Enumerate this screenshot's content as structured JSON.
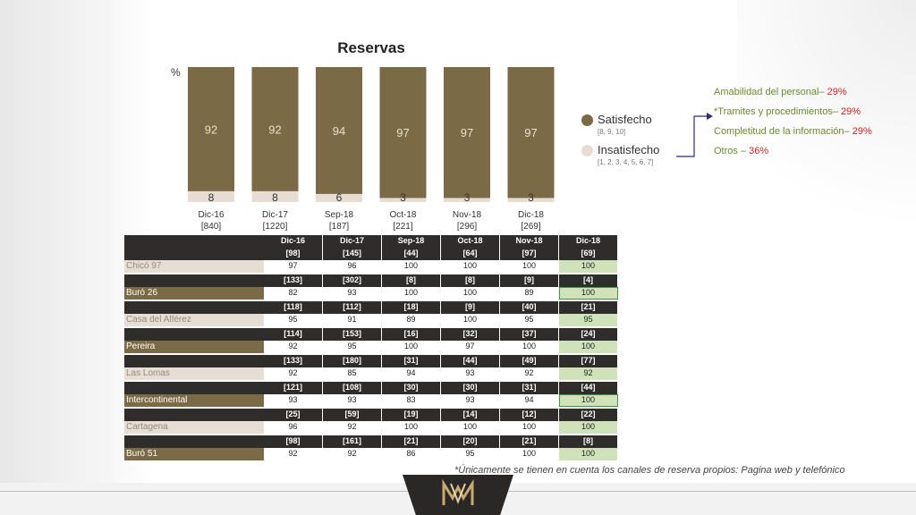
{
  "title": "Reservas",
  "y_unit": "%",
  "colors": {
    "satisfied": "#7a6a45",
    "unsatisfied": "#e7ddd4",
    "highlight": "#cfe2b9",
    "reason_value": "#d21f1f",
    "reason_text": "#6b8a2e"
  },
  "chart_data": {
    "type": "bar",
    "categories": [
      "Dic-16",
      "Dic-17",
      "Sep-18",
      "Oct-18",
      "Nov-18",
      "Dic-18"
    ],
    "bases": [
      "[840]",
      "[1220]",
      "[187]",
      "[221]",
      "[296]",
      "[269]"
    ],
    "series": [
      {
        "name": "Satisfecho",
        "values": [
          92,
          92,
          94,
          97,
          97,
          97
        ]
      },
      {
        "name": "Insatisfecho",
        "values": [
          8,
          8,
          6,
          3,
          3,
          3
        ]
      }
    ],
    "ylim": [
      0,
      100
    ]
  },
  "legend": {
    "satisfied_label": "Satisfecho",
    "satisfied_sub": "[8, 9, 10]",
    "unsatisfied_label": "Insatisfecho",
    "unsatisfied_sub": "[1, 2, 3, 4, 5, 6, 7]"
  },
  "reasons": [
    {
      "label": "Amabilidad del personal–",
      "value": "29%"
    },
    {
      "label": "*Tramites y procedimientos–",
      "value": "29%"
    },
    {
      "label": "Completitud de la información–",
      "value": "29%"
    },
    {
      "label": "Otros –",
      "value": "36%"
    }
  ],
  "table": {
    "columns": [
      "Dic-16",
      "Dic-17",
      "Sep-18",
      "Oct-18",
      "Nov-18",
      "Dic-18"
    ],
    "header_counts": [
      "[98]",
      "[145]",
      "[44]",
      "[64]",
      "[97]",
      "[69]"
    ],
    "rows": [
      {
        "name": "Chicó 97",
        "values": [
          "97",
          "96",
          "100",
          "100",
          "100",
          "100"
        ]
      },
      {
        "name": "Buró 26",
        "counts": [
          "[133]",
          "[302]",
          "[8]",
          "[8]",
          "[9]",
          "[4]"
        ],
        "values": [
          "82",
          "93",
          "100",
          "100",
          "89",
          "100"
        ]
      },
      {
        "name": "Casa del Alférez",
        "counts": [
          "[118]",
          "[112]",
          "[18]",
          "[9]",
          "[40]",
          "[21]"
        ],
        "values": [
          "95",
          "91",
          "89",
          "100",
          "95",
          "95"
        ]
      },
      {
        "name": "Pereira",
        "counts": [
          "[114]",
          "[153]",
          "[16]",
          "[32]",
          "[37]",
          "[24]"
        ],
        "values": [
          "92",
          "95",
          "100",
          "97",
          "100",
          "100"
        ]
      },
      {
        "name": "Las Lomas",
        "counts": [
          "[133]",
          "[180]",
          "[31]",
          "[44]",
          "[49]",
          "[77]"
        ],
        "values": [
          "92",
          "85",
          "94",
          "93",
          "92",
          "92"
        ]
      },
      {
        "name": "Intercontinental",
        "counts": [
          "[121]",
          "[108]",
          "[30]",
          "[30]",
          "[31]",
          "[44]"
        ],
        "values": [
          "93",
          "93",
          "83",
          "93",
          "94",
          "100"
        ]
      },
      {
        "name": "Cartagena",
        "counts": [
          "[25]",
          "[59]",
          "[19]",
          "[14]",
          "[12]",
          "[22]"
        ],
        "values": [
          "96",
          "92",
          "100",
          "100",
          "100",
          "100"
        ]
      },
      {
        "name": "Buró 51",
        "counts": [
          "[98]",
          "[161]",
          "[21]",
          "[20]",
          "[21]",
          "[8]"
        ],
        "values": [
          "92",
          "92",
          "86",
          "95",
          "100",
          "100"
        ]
      }
    ]
  },
  "footnote": "*Únicamente se tienen en cuenta los canales de reserva propios: Pagina web y telefónico"
}
